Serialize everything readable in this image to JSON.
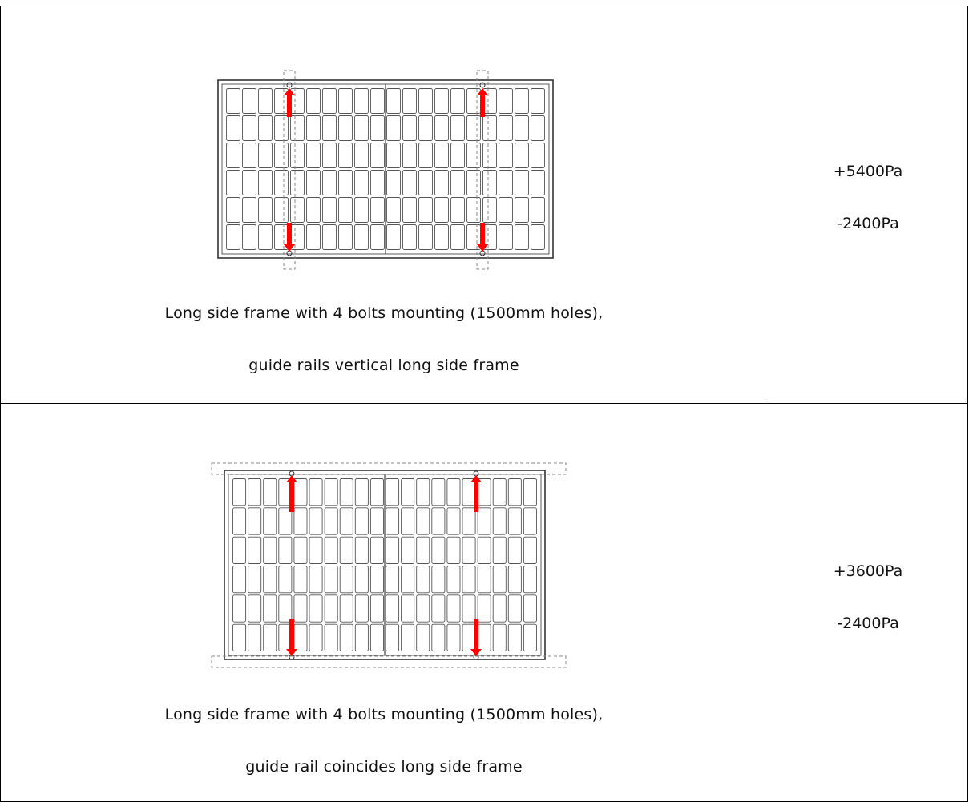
{
  "rows": [
    {
      "caption_line1": "Long side frame with 4 bolts mounting (1500mm holes),",
      "caption_line2": "guide rails vertical long side frame",
      "pressure_positive": "+5400Pa",
      "pressure_negative": "-2400Pa"
    },
    {
      "caption_line1": "Long side frame with 4 bolts mounting (1500mm holes),",
      "caption_line2": "guide rail coincides long side frame",
      "pressure_positive": "+3600Pa",
      "pressure_negative": "-2400Pa"
    }
  ],
  "colors": {
    "arrow": "#ff0000",
    "line": "#333333",
    "rail": "#888888"
  }
}
